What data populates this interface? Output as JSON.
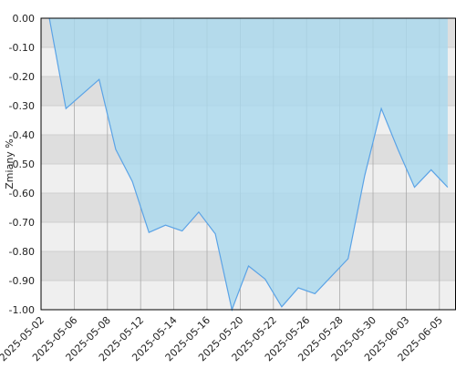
{
  "chart_data": {
    "type": "area",
    "y_label": "Zmiany %",
    "categories": [
      "2025-05-02",
      null,
      "2025-05-06",
      null,
      "2025-05-08",
      null,
      "2025-05-12",
      null,
      "2025-05-14",
      null,
      "2025-05-16",
      null,
      "2025-05-20",
      null,
      "2025-05-22",
      null,
      "2025-05-26",
      null,
      "2025-05-28",
      null,
      "2025-05-30",
      null,
      "2025-06-03",
      null,
      "2025-06-05"
    ],
    "values": [
      0,
      -0.31,
      -0.26,
      -0.21,
      -0.45,
      -0.56,
      -0.735,
      -0.71,
      -0.73,
      -0.665,
      -0.74,
      -1.0,
      -0.85,
      -0.895,
      -0.99,
      -0.925,
      -0.945,
      -0.885,
      -0.825,
      -0.54,
      -0.31,
      -0.45,
      -0.58,
      -0.52,
      -0.58
    ],
    "color": "#5ba3e6",
    "fill": "#a9d8ee",
    "ylim": [
      -1.0,
      0.0
    ],
    "yticks": [
      {
        "value": 0,
        "label": "0.00"
      },
      {
        "value": -0.1,
        "label": "-0.10"
      },
      {
        "value": -0.2,
        "label": "-0.20"
      },
      {
        "value": -0.3,
        "label": "-0.30"
      },
      {
        "value": -0.4,
        "label": "-0.40"
      },
      {
        "value": -0.5,
        "label": "-0.50"
      },
      {
        "value": -0.6,
        "label": "-0.60"
      },
      {
        "value": -0.7,
        "label": "-0.70"
      },
      {
        "value": -0.8,
        "label": "-0.80"
      },
      {
        "value": -0.9,
        "label": "-0.90"
      },
      {
        "value": -1.0,
        "label": "-1.00"
      }
    ],
    "grid": true
  }
}
